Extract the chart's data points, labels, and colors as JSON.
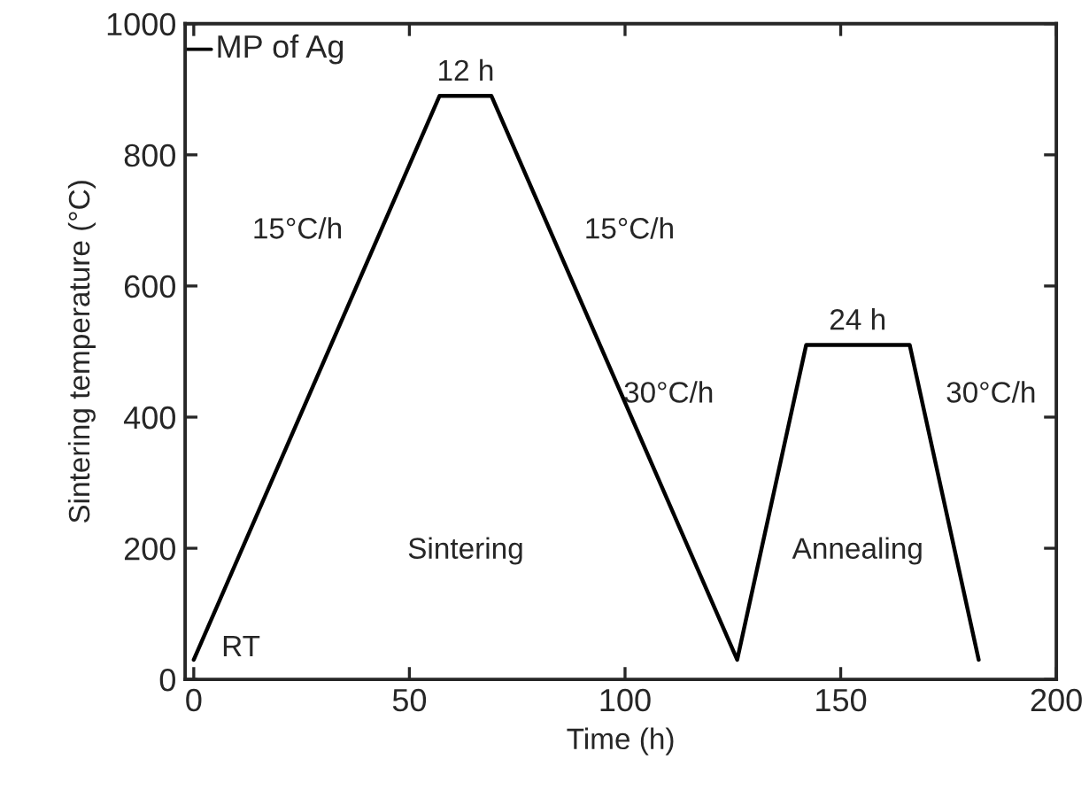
{
  "chart_data": {
    "type": "line",
    "xlabel": "Time (h)",
    "ylabel": "Sintering temperature (°C)",
    "x": [
      0,
      57,
      69,
      126,
      142,
      166,
      182
    ],
    "series": [
      {
        "color": "#000000",
        "values": [
          30,
          890,
          890,
          30,
          510,
          510,
          30
        ]
      }
    ],
    "xlim": [
      -2,
      200
    ],
    "xticks": [
      0,
      50,
      100,
      150,
      200
    ],
    "ylim": [
      0,
      1000
    ],
    "yticks": [
      0,
      200,
      400,
      600,
      800,
      1000
    ],
    "ref_lines": [
      {
        "axis": "y",
        "value": 961,
        "label": "MP of Ag",
        "color": "#000000"
      }
    ],
    "annotations": [
      "12 h",
      "15°C/h",
      "15°C/h",
      "30°C/h",
      "24 h",
      "30°C/h",
      "RT",
      "Sintering",
      "Annealing"
    ],
    "grid": false,
    "legend": false,
    "marker": "none",
    "line_style": "solid"
  }
}
